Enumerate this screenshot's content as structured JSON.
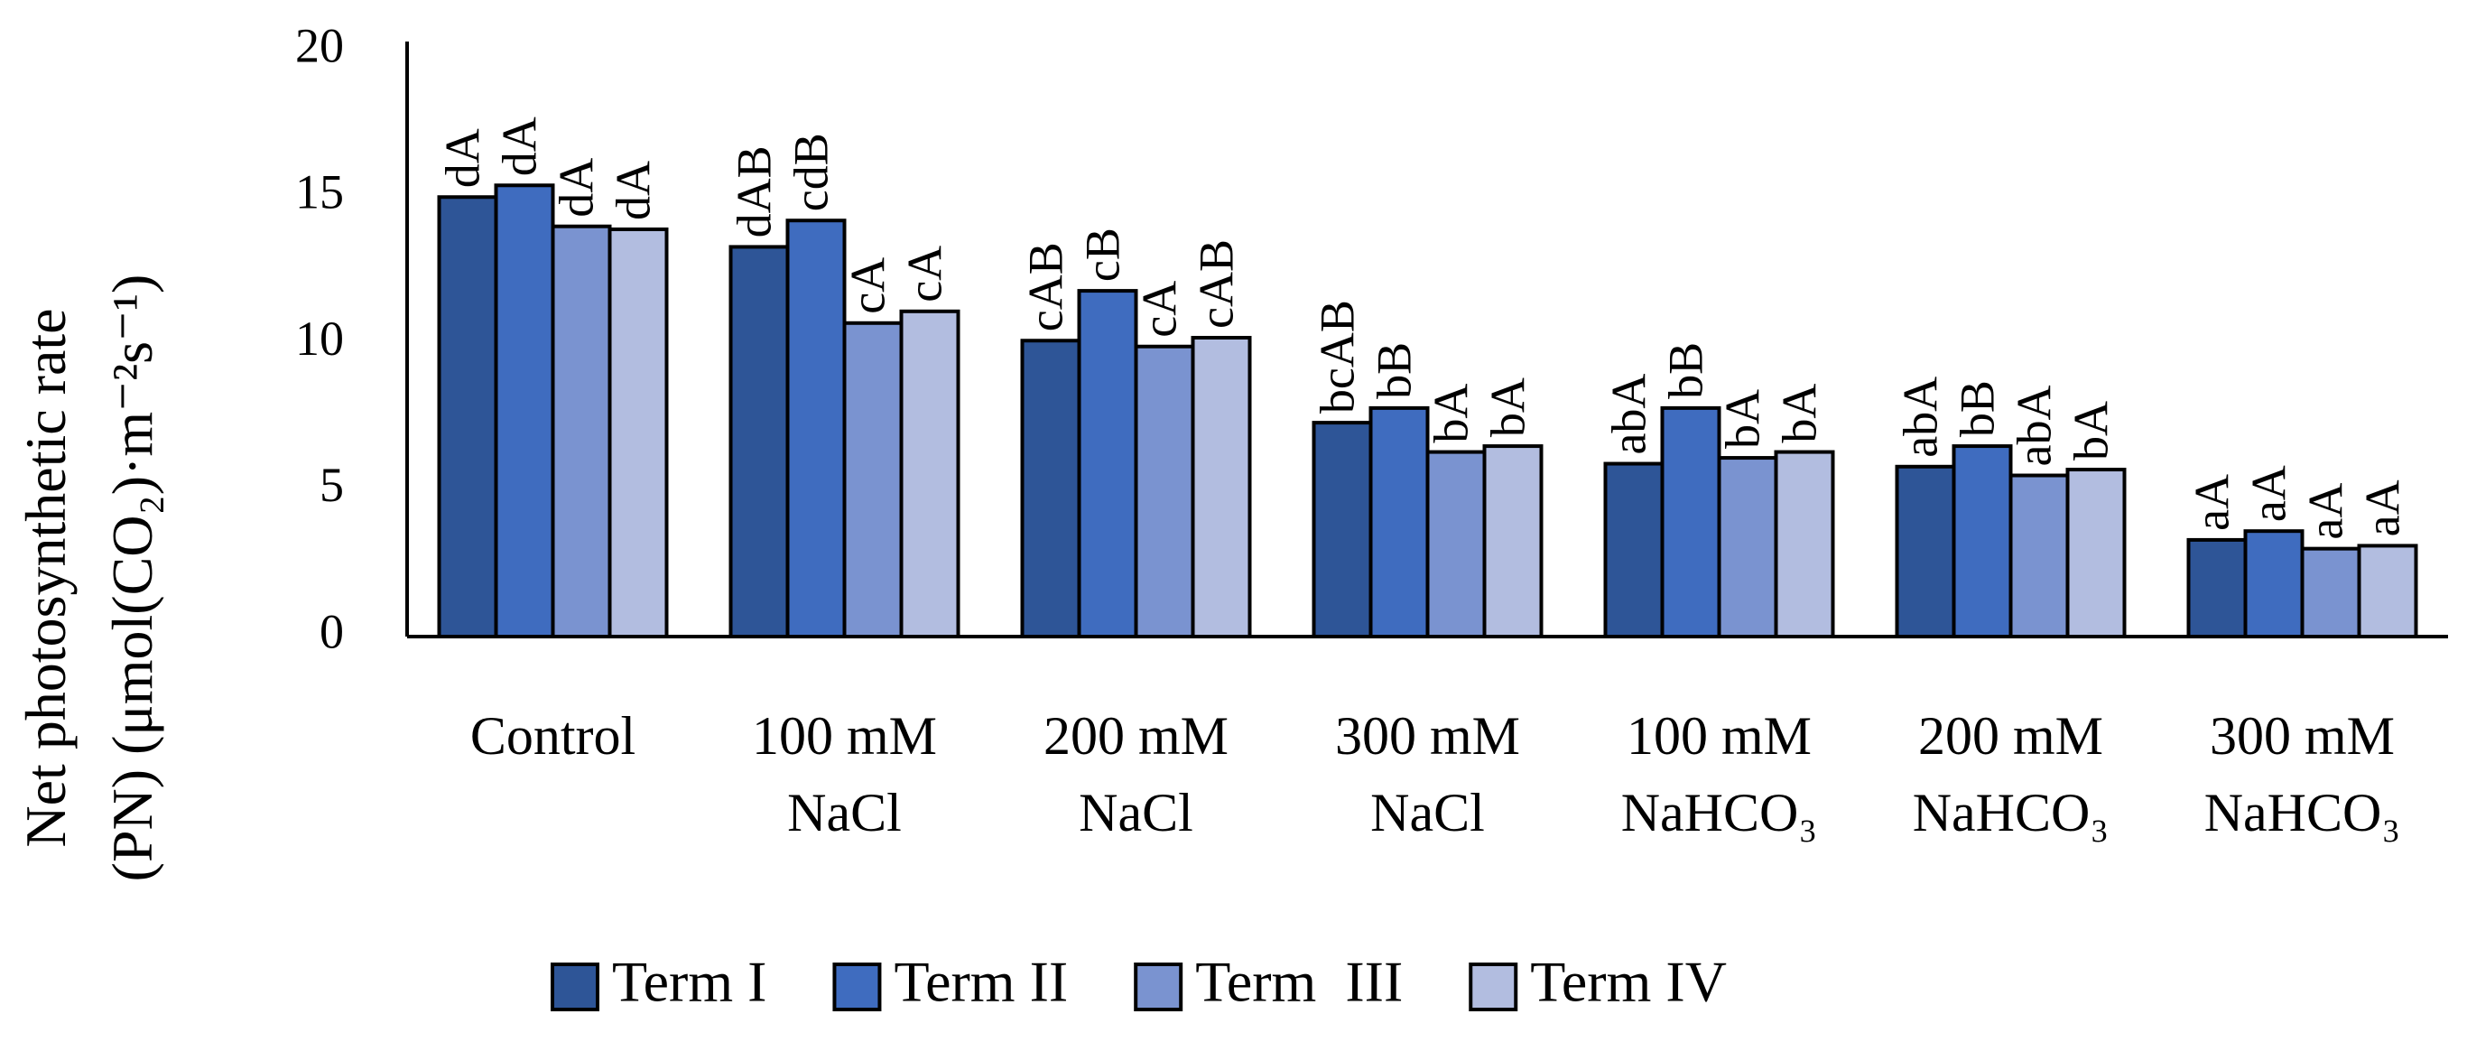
{
  "chart_data": {
    "type": "bar",
    "y_label": [
      "Net photosynthetic rate",
      "(PN) (μmol(CO₂)·m⁻²s⁻¹)"
    ],
    "categories": [
      [
        "Control"
      ],
      [
        "100 mM",
        "NaCl"
      ],
      [
        "200 mM",
        "NaCl"
      ],
      [
        "300 mM",
        "NaCl"
      ],
      [
        "100 mM",
        "NaHCO₃"
      ],
      [
        "200 mM",
        "NaHCO₃"
      ],
      [
        "300 mM",
        "NaHCO₃"
      ]
    ],
    "series": [
      {
        "name": "Term I",
        "color": "#2e5597",
        "values": [
          15.0,
          13.3,
          10.1,
          7.3,
          5.9,
          5.8,
          3.3
        ],
        "labels": [
          "dA",
          "dAB",
          "cAB",
          "bcAB",
          "abA",
          "abA",
          "aA"
        ]
      },
      {
        "name": "Term II",
        "color": "#3f6cbf",
        "values": [
          15.4,
          14.2,
          11.8,
          7.8,
          7.8,
          6.5,
          3.6
        ],
        "labels": [
          "dA",
          "cdB",
          "cB",
          "bB",
          "bB",
          "bB",
          "aA"
        ]
      },
      {
        "name": "Term  III",
        "color": "#7a93d0",
        "values": [
          14.0,
          10.7,
          9.9,
          6.3,
          6.1,
          5.5,
          3.0
        ],
        "labels": [
          "dA",
          "cA",
          "cA",
          "bA",
          "bA",
          "abA",
          "aA"
        ]
      },
      {
        "name": "Term IV",
        "color": "#b2bde0",
        "values": [
          13.9,
          11.1,
          10.2,
          6.5,
          6.3,
          5.7,
          3.1
        ],
        "labels": [
          "dA",
          "cA",
          "cAB",
          "bA",
          "bA",
          "bA",
          "aA"
        ]
      }
    ],
    "ylim": [
      0,
      20
    ],
    "yticks": [
      0,
      5,
      10,
      15,
      20
    ],
    "grid": false,
    "legend": "bottom"
  }
}
